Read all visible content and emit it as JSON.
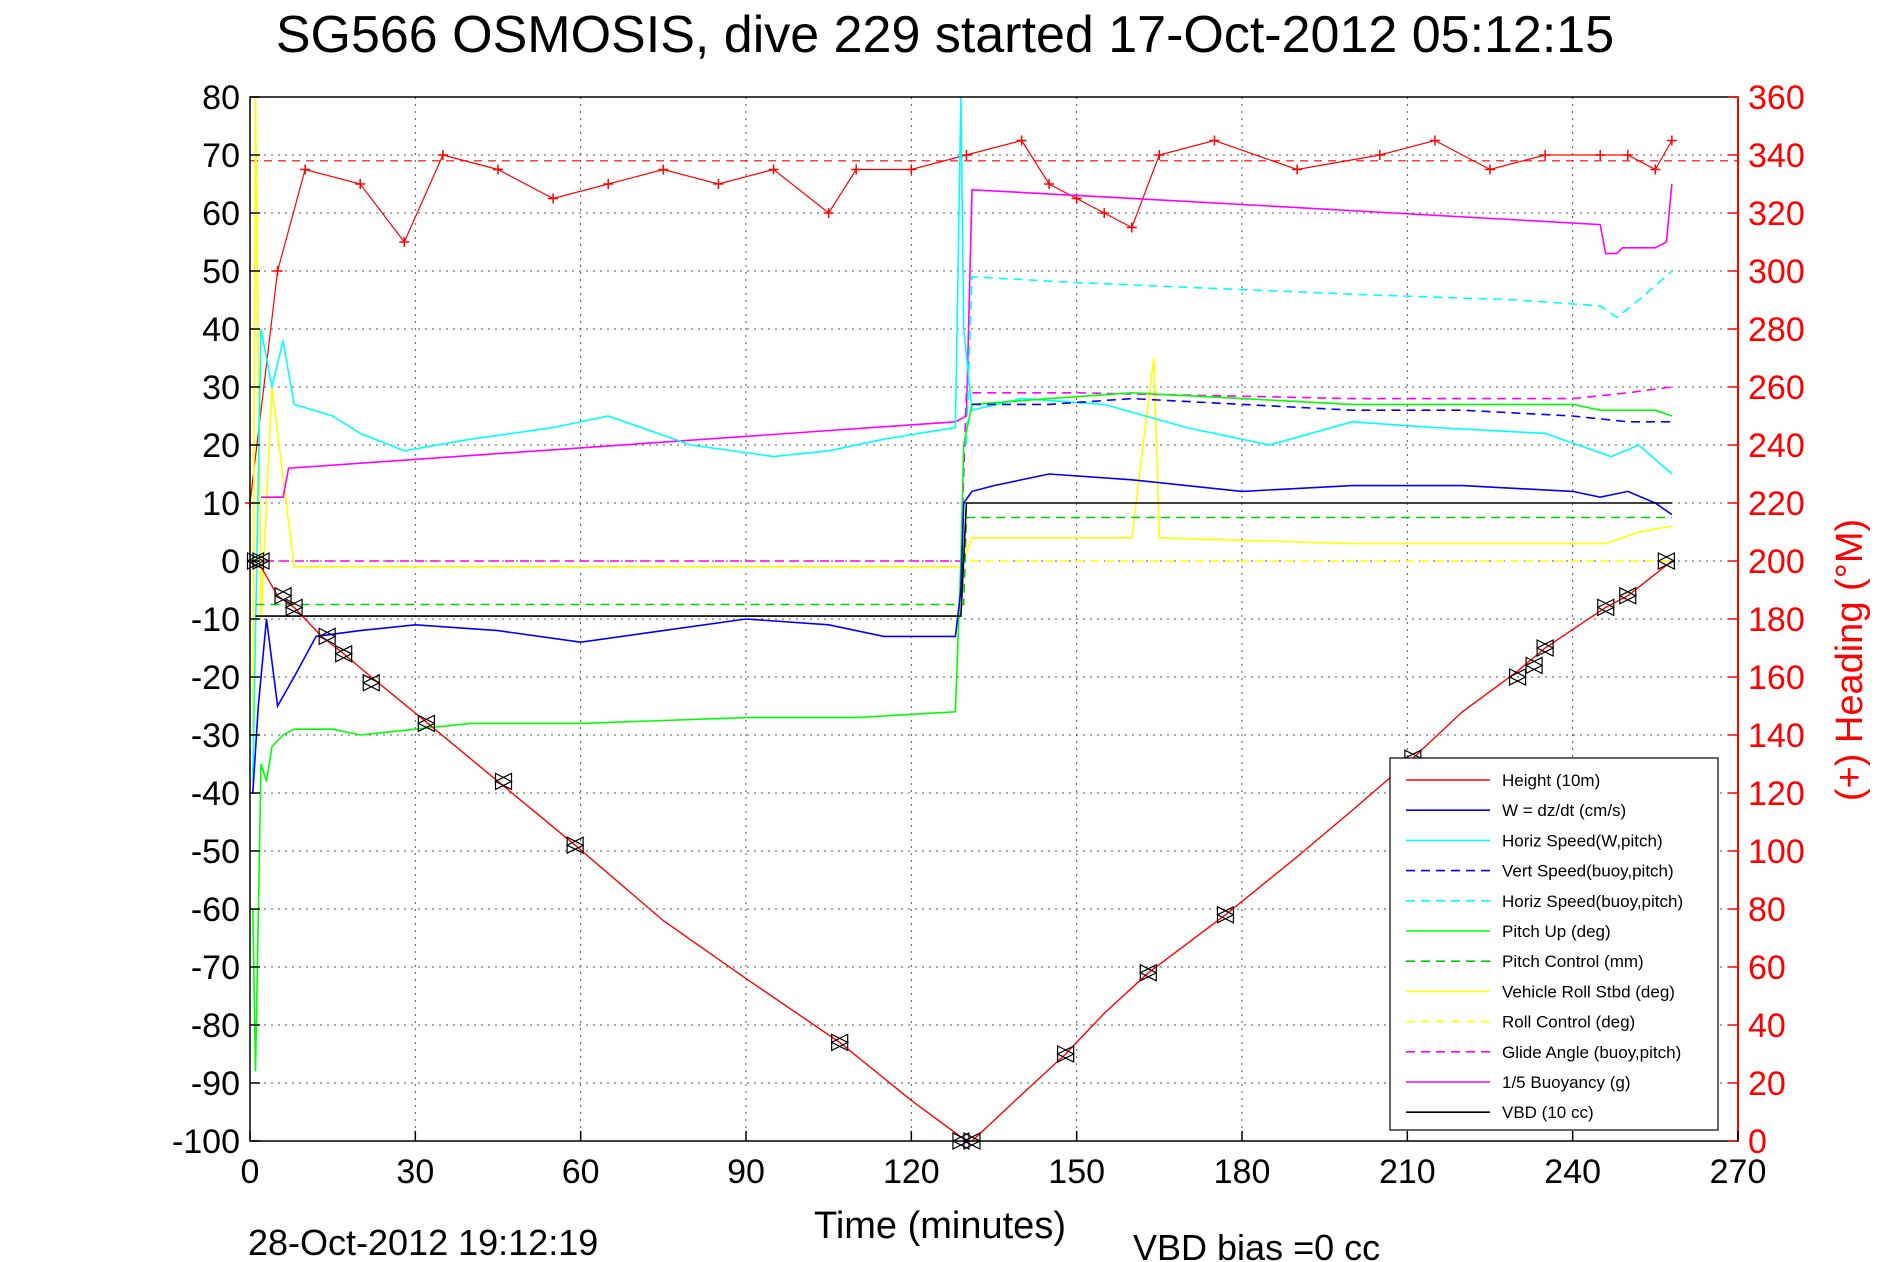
{
  "title": "SG566 OSMOSIS, dive 229 started 17-Oct-2012 05:12:15",
  "xlabel": "Time (minutes)",
  "ylabel_right": "(+) Heading (°M)",
  "timestamp": "28-Oct-2012 19:12:19",
  "vbd_bias": "VBD bias =0 cc",
  "colors": {
    "height": "#ff0000",
    "w": "#0000ff",
    "horiz_w_pitch": "#00ffff",
    "vert_buoy": "#0000ff",
    "horiz_buoy": "#00ffff",
    "pitch_up": "#00ff00",
    "pitch_control": "#00cc00",
    "roll": "#ffff00",
    "roll_control": "#ffff00",
    "glide": "#ff00ff",
    "buoyancy": "#ff00ff",
    "vbd": "#000000",
    "heading": "#ff0000"
  },
  "chart_data": {
    "type": "line",
    "title": "SG566 OSMOSIS, dive 229 started 17-Oct-2012 05:12:15",
    "xlabel": "Time (minutes)",
    "ylabel": "",
    "ylabel_right": "(+) Heading (°M)",
    "xlim": [
      0,
      270
    ],
    "ylim": [
      -100,
      80
    ],
    "ylim_right": [
      0,
      360
    ],
    "grid": true,
    "legend_position": "bottom-right",
    "x_ticks": [
      0,
      30,
      60,
      90,
      120,
      150,
      180,
      210,
      240,
      270
    ],
    "y_ticks": [
      -100,
      -90,
      -80,
      -70,
      -60,
      -50,
      -40,
      -30,
      -20,
      -10,
      0,
      10,
      20,
      30,
      40,
      50,
      60,
      70,
      80
    ],
    "y_right_ticks": [
      0,
      20,
      40,
      60,
      80,
      100,
      120,
      140,
      160,
      180,
      200,
      220,
      240,
      260,
      280,
      300,
      320,
      340,
      360
    ],
    "series": [
      {
        "name": "Height (10m)",
        "key": "height",
        "style": "solid",
        "x": [
          0,
          1,
          2,
          5,
          8,
          13,
          17,
          22,
          31,
          45,
          59,
          75,
          90,
          107,
          120,
          130,
          131,
          140,
          148,
          155,
          163,
          177,
          190,
          200,
          211,
          220,
          230,
          235,
          246,
          250,
          258
        ],
        "y": [
          0,
          -1,
          -1,
          -6,
          -8,
          -13,
          -16,
          -20,
          -27,
          -38,
          -49,
          -62,
          -72,
          -83,
          -93,
          -100,
          -100,
          -92,
          -85,
          -78,
          -71,
          -61,
          -51,
          -43,
          -34,
          -26,
          -19,
          -15,
          -8,
          -6,
          0
        ]
      },
      {
        "name": "W = dz/dt (cm/s)",
        "key": "w",
        "style": "solid",
        "x": [
          0.5,
          1.5,
          3,
          5,
          8,
          12,
          20,
          30,
          45,
          60,
          75,
          90,
          105,
          115,
          128,
          129,
          129.5,
          131,
          135,
          145,
          160,
          180,
          200,
          220,
          240,
          245,
          250,
          255,
          258
        ],
        "y": [
          -40,
          -25,
          -10,
          -25,
          -20,
          -13,
          -12,
          -11,
          -12,
          -14,
          -12,
          -10,
          -11,
          -13,
          -13,
          -5,
          10,
          12,
          13,
          15,
          14,
          12,
          13,
          13,
          12,
          11,
          12,
          10,
          8
        ]
      },
      {
        "name": "Horiz Speed(W,pitch)",
        "key": "horiz_w_pitch",
        "style": "solid",
        "x": [
          0.5,
          2,
          4,
          6,
          8,
          15,
          20,
          28,
          40,
          55,
          65,
          80,
          95,
          105,
          115,
          128,
          129,
          129.5,
          131,
          140,
          155,
          170,
          185,
          200,
          215,
          235,
          247,
          252,
          258
        ],
        "y": [
          -38,
          40,
          30,
          38,
          27,
          25,
          22,
          19,
          21,
          23,
          25,
          20,
          18,
          19,
          21,
          23,
          80,
          40,
          26,
          28,
          27,
          23,
          20,
          24,
          23,
          22,
          18,
          20,
          15
        ]
      },
      {
        "name": "Vert Speed(buoy,pitch)",
        "key": "vert_buoy",
        "style": "dashed",
        "x": [
          131,
          145,
          160,
          180,
          200,
          220,
          240,
          250,
          258
        ],
        "y": [
          27,
          27,
          28,
          27,
          26,
          26,
          25,
          24,
          24
        ]
      },
      {
        "name": "Horiz Speed(buoy,pitch)",
        "key": "horiz_buoy",
        "style": "dashed",
        "x": [
          130,
          131,
          150,
          175,
          200,
          230,
          245,
          248,
          252,
          258
        ],
        "y": [
          20,
          49,
          48,
          47,
          46,
          45,
          44,
          42,
          45,
          50
        ]
      },
      {
        "name": "Pitch Up (deg)",
        "key": "pitch_up",
        "style": "solid",
        "x": [
          0.5,
          1,
          2,
          3,
          4,
          6,
          8,
          15,
          20,
          40,
          60,
          90,
          110,
          128,
          129,
          129.5,
          131,
          145,
          160,
          180,
          200,
          220,
          240,
          245,
          250,
          255,
          258
        ],
        "y": [
          -60,
          -88,
          -35,
          -38,
          -32,
          -30,
          -29,
          -29,
          -30,
          -28,
          -28,
          -27,
          -27,
          -26,
          0,
          20,
          27,
          28,
          29,
          28,
          27,
          27,
          27,
          26,
          26,
          26,
          25
        ]
      },
      {
        "name": "Pitch Control (mm)",
        "key": "pitch_control",
        "style": "dashed",
        "x": [
          1,
          129.5,
          130,
          258
        ],
        "y": [
          -7.5,
          -7.5,
          7.5,
          7.5
        ]
      },
      {
        "name": "Vehicle Roll Stbd (deg)",
        "key": "roll",
        "style": "solid",
        "x": [
          0.5,
          1,
          2,
          4,
          8,
          30,
          60,
          90,
          128,
          129,
          131,
          160,
          164,
          165,
          200,
          230,
          240,
          246,
          252,
          258
        ],
        "y": [
          -30,
          80,
          -10,
          30,
          -1,
          -1,
          -1,
          -1,
          -1,
          -1,
          4,
          4,
          35,
          4,
          3,
          3,
          3,
          3,
          5,
          6
        ]
      },
      {
        "name": "Roll Control (deg)",
        "key": "roll_control",
        "style": "dashed",
        "x": [
          0,
          3,
          258
        ],
        "y": [
          0,
          0,
          0
        ]
      },
      {
        "name": "Glide Angle (buoy,pitch)",
        "key": "glide",
        "style": "dashed",
        "x": [
          0,
          129,
          130,
          150,
          200,
          240,
          250,
          258
        ],
        "y": [
          0,
          0,
          29,
          29,
          28,
          28,
          29,
          30
        ]
      },
      {
        "name": "1/5 Buoyancy (g)",
        "key": "buoyancy",
        "style": "solid",
        "x": [
          2,
          6,
          7,
          128,
          130,
          131,
          170,
          245,
          246,
          248,
          249,
          255,
          257,
          258
        ],
        "y": [
          11,
          11,
          16,
          24,
          25,
          64,
          62,
          58,
          53,
          53,
          54,
          54,
          55,
          65
        ]
      },
      {
        "name": "VBD (10 cc)",
        "key": "vbd",
        "style": "solid",
        "x": [
          1,
          129,
          130,
          258
        ],
        "y": [
          -9.5,
          -9.5,
          10,
          10
        ]
      }
    ],
    "heading": {
      "name": "(+) Heading (°M)",
      "axis": "right",
      "x": [
        0,
        5,
        10,
        20,
        28,
        35,
        45,
        55,
        65,
        75,
        85,
        95,
        105,
        110,
        120,
        130,
        140,
        145,
        150,
        155,
        160,
        165,
        175,
        190,
        205,
        215,
        225,
        235,
        245,
        250,
        255,
        258
      ],
      "y": [
        220,
        300,
        335,
        330,
        310,
        340,
        335,
        325,
        330,
        335,
        330,
        335,
        320,
        335,
        335,
        340,
        345,
        330,
        325,
        320,
        315,
        340,
        345,
        335,
        340,
        345,
        335,
        340,
        340,
        340,
        335,
        345
      ],
      "reference_line": 338
    },
    "markers": {
      "x": [
        1,
        2,
        6,
        8,
        14,
        17,
        22,
        32,
        46,
        59,
        107,
        129,
        131,
        148,
        163,
        177,
        211,
        230,
        233,
        235,
        246,
        250,
        257
      ],
      "y": [
        0,
        0,
        -6,
        -8,
        -13,
        -16,
        -21,
        -28,
        -38,
        -49,
        -83,
        -100,
        -100,
        -85,
        -71,
        -61,
        -34,
        -20,
        -18,
        -15,
        -8,
        -6,
        0
      ]
    }
  }
}
